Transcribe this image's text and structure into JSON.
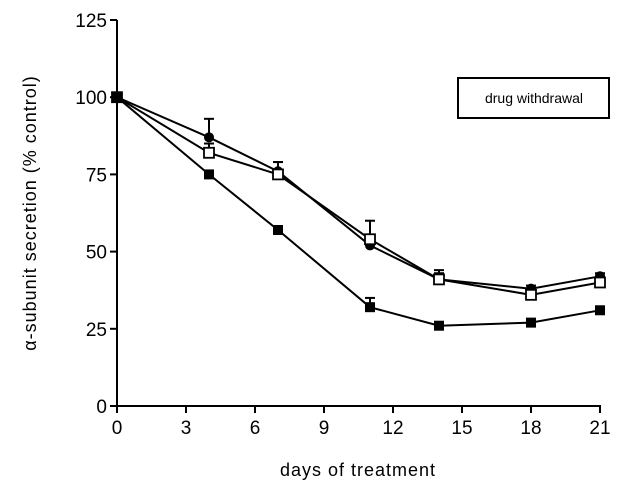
{
  "chart_data": {
    "type": "line",
    "xlabel": "days of treatment",
    "ylabel": "α-subunit secretion (% control)",
    "xlim": [
      0,
      21
    ],
    "ylim": [
      0,
      125
    ],
    "xticks": [
      0,
      3,
      6,
      9,
      12,
      15,
      18,
      21
    ],
    "yticks": [
      0,
      25,
      50,
      75,
      100,
      125
    ],
    "grid": false,
    "annotation": "drug withdrawal",
    "series": [
      {
        "marker": "filled-circle",
        "x": [
          0,
          4,
          7,
          11,
          14,
          18,
          21
        ],
        "y": [
          100,
          87,
          76,
          52,
          41,
          38,
          42
        ],
        "err": [
          0,
          6,
          3,
          3,
          2,
          1,
          1
        ]
      },
      {
        "marker": "open-square",
        "x": [
          0,
          4,
          7,
          11,
          14,
          18,
          21
        ],
        "y": [
          100,
          82,
          75,
          54,
          41,
          36,
          40
        ],
        "err": [
          0,
          3,
          4,
          6,
          3,
          1,
          2
        ]
      },
      {
        "marker": "filled-square",
        "x": [
          0,
          4,
          7,
          11,
          14,
          18,
          21
        ],
        "y": [
          100,
          75,
          57,
          32,
          26,
          27,
          31
        ],
        "err": [
          0,
          0,
          0,
          3,
          0,
          0,
          0
        ]
      }
    ]
  }
}
